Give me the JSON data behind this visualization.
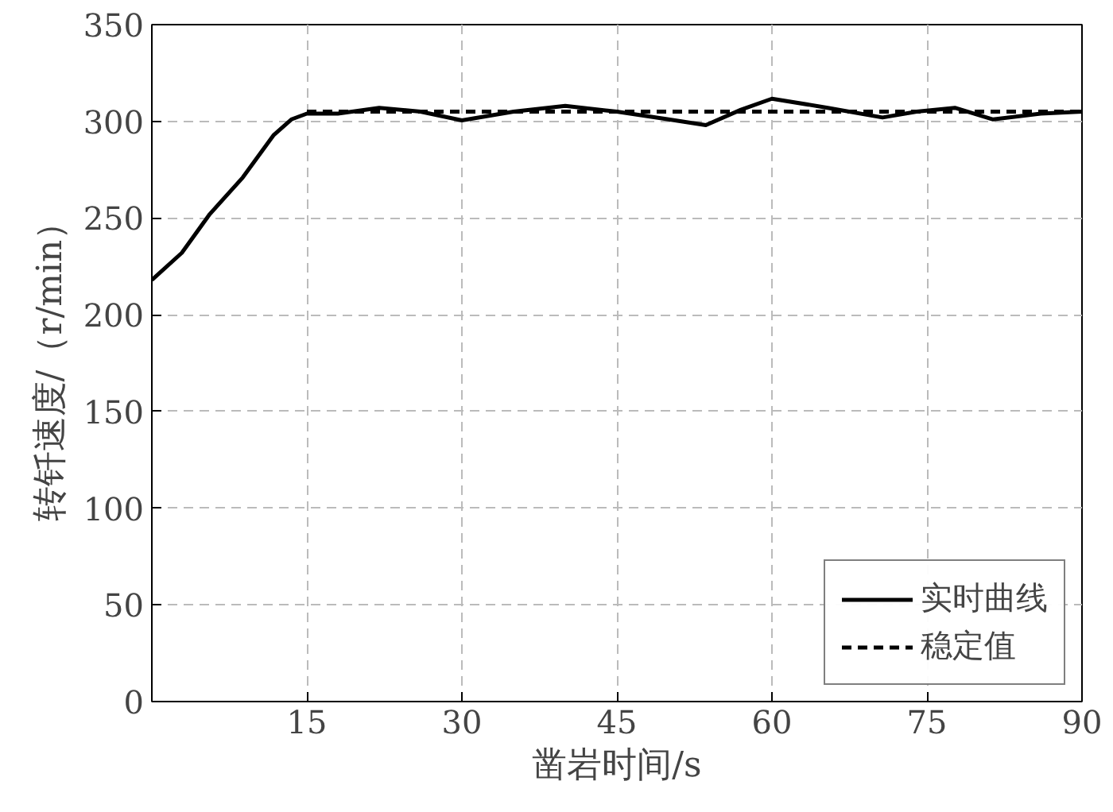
{
  "chart_data": {
    "type": "line",
    "xlabel": "凿岩时间/s",
    "ylabel": "转钎速度/（r/min）",
    "xlim": [
      0,
      90
    ],
    "ylim": [
      0,
      350
    ],
    "xticks": [
      15,
      30,
      45,
      60,
      75,
      90
    ],
    "yticks": [
      0,
      50,
      100,
      150,
      200,
      250,
      300,
      350
    ],
    "grid": true,
    "legend": "bottom right",
    "series": [
      {
        "name": "实时曲线",
        "color": "#000000",
        "line_style": "solid",
        "x": [
          0,
          2.9,
          5.6,
          8.8,
          11.8,
          13.5,
          15,
          18,
          22,
          26,
          30,
          35,
          40,
          45,
          50,
          53.6,
          57,
          60,
          65.4,
          70.7,
          74,
          77.7,
          81.4,
          86,
          90
        ],
        "values": [
          218,
          232,
          252,
          271,
          293,
          301,
          304,
          304,
          307,
          305,
          300.5,
          305,
          308,
          305,
          301,
          298,
          306,
          311.7,
          307,
          302,
          305,
          307,
          301,
          304,
          305
        ]
      },
      {
        "name": "稳定值",
        "color": "#000000",
        "line_style": "dashed",
        "x": [
          15,
          90
        ],
        "values": [
          305,
          305
        ]
      }
    ]
  }
}
